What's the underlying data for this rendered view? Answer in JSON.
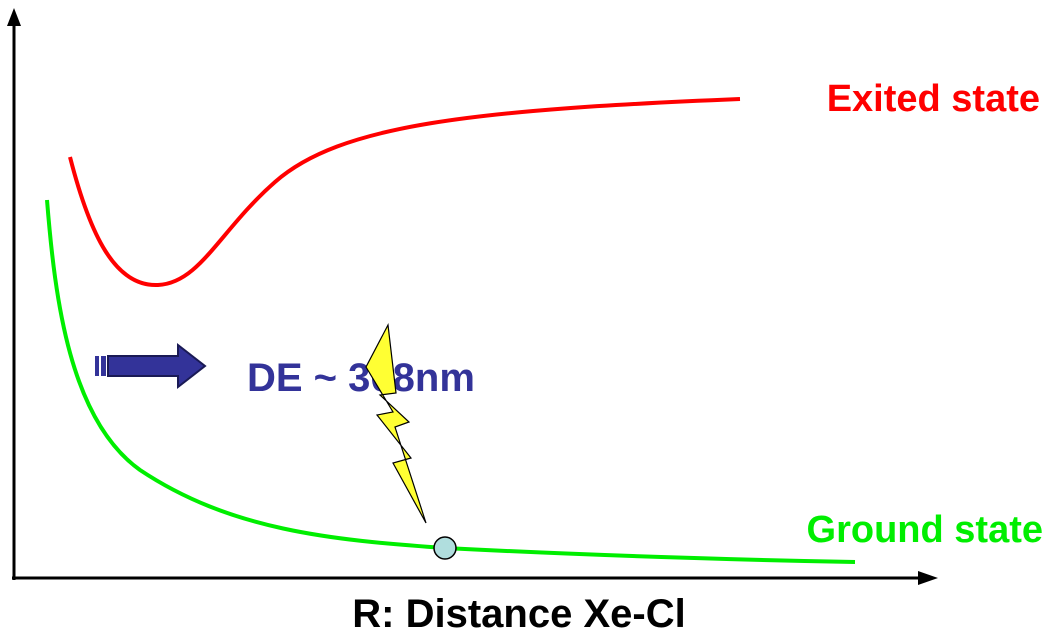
{
  "diagram": {
    "curves": {
      "excited": {
        "label": "Exited state",
        "color": "#ff0000"
      },
      "ground": {
        "label": "Ground state",
        "color": "#00ee00"
      }
    },
    "transition": {
      "label": "DE ~ 308nm",
      "label_color": "#333399",
      "arrow_color": "#333399",
      "bolt_color": "#ffff33",
      "marker_color": "#b0dede"
    },
    "axis": {
      "x_label": "R: Distance Xe-Cl",
      "color": "#000000"
    }
  }
}
